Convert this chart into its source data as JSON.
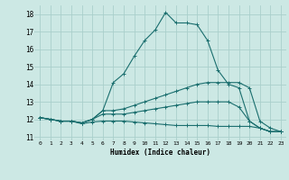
{
  "xlabel": "Humidex (Indice chaleur)",
  "bg_color": "#cce8e4",
  "grid_color": "#aacfcb",
  "line_color": "#1a6e6e",
  "xlim": [
    -0.5,
    23.5
  ],
  "ylim": [
    10.8,
    18.5
  ],
  "ytick_vals": [
    11,
    12,
    13,
    14,
    15,
    16,
    17,
    18
  ],
  "lines": [
    {
      "x": [
        0,
        1,
        2,
        3,
        4,
        5,
        6,
        7,
        8,
        9,
        10,
        11,
        12,
        13,
        14,
        15,
        16,
        17,
        18,
        19,
        20,
        21,
        22,
        23
      ],
      "y": [
        12.1,
        12.0,
        11.9,
        11.9,
        11.8,
        12.0,
        12.5,
        14.1,
        14.6,
        15.6,
        16.5,
        17.1,
        18.1,
        17.5,
        17.5,
        17.4,
        16.5,
        14.8,
        14.0,
        13.8,
        11.9,
        11.5,
        11.3,
        11.3
      ]
    },
    {
      "x": [
        0,
        1,
        2,
        3,
        4,
        5,
        6,
        7,
        8,
        9,
        10,
        11,
        12,
        13,
        14,
        15,
        16,
        17,
        18,
        19,
        20,
        21,
        22,
        23
      ],
      "y": [
        12.1,
        12.0,
        11.9,
        11.9,
        11.8,
        12.0,
        12.5,
        12.5,
        12.6,
        12.8,
        13.0,
        13.2,
        13.4,
        13.6,
        13.8,
        14.0,
        14.1,
        14.1,
        14.1,
        14.1,
        13.8,
        11.9,
        11.5,
        11.3
      ]
    },
    {
      "x": [
        0,
        1,
        2,
        3,
        4,
        5,
        6,
        7,
        8,
        9,
        10,
        11,
        12,
        13,
        14,
        15,
        16,
        17,
        18,
        19,
        20,
        21,
        22,
        23
      ],
      "y": [
        12.1,
        12.0,
        11.9,
        11.9,
        11.8,
        12.0,
        12.3,
        12.3,
        12.3,
        12.4,
        12.5,
        12.6,
        12.7,
        12.8,
        12.9,
        13.0,
        13.0,
        13.0,
        13.0,
        12.7,
        11.9,
        11.5,
        11.3,
        11.3
      ]
    },
    {
      "x": [
        0,
        1,
        2,
        3,
        4,
        5,
        6,
        7,
        8,
        9,
        10,
        11,
        12,
        13,
        14,
        15,
        16,
        17,
        18,
        19,
        20,
        21,
        22,
        23
      ],
      "y": [
        12.1,
        12.0,
        11.9,
        11.9,
        11.75,
        11.85,
        11.9,
        11.9,
        11.9,
        11.85,
        11.8,
        11.75,
        11.7,
        11.65,
        11.65,
        11.65,
        11.65,
        11.6,
        11.6,
        11.6,
        11.6,
        11.5,
        11.3,
        11.3
      ]
    }
  ],
  "marker": "+",
  "markersize": 3,
  "linewidth": 0.8
}
